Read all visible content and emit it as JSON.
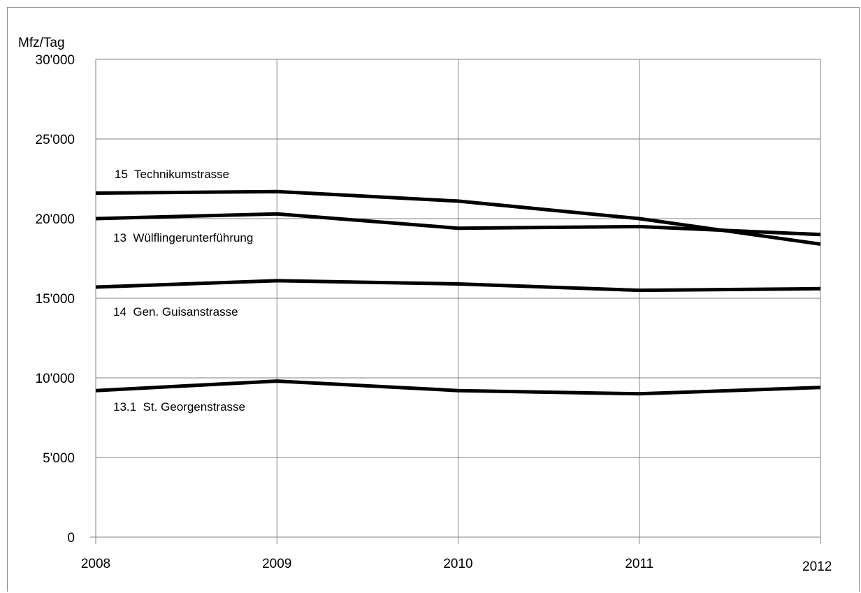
{
  "chart_data": {
    "type": "line",
    "ylabel": "Mfz/Tag",
    "xlabel": "",
    "title": "",
    "x": [
      "2008",
      "2009",
      "2010",
      "2011",
      "2012"
    ],
    "ylim": [
      0,
      30000
    ],
    "yticks": [
      0,
      5000,
      10000,
      15000,
      20000,
      25000,
      30000
    ],
    "ytick_labels": [
      "0",
      "5'000",
      "10'000",
      "15'000",
      "20'000",
      "25'000",
      "30'000"
    ],
    "grid": true,
    "legend": "none (series labelled directly on chart)",
    "line_color": "#000000",
    "series": [
      {
        "name": "15  Technikumstrasse",
        "values": [
          21600,
          21700,
          21100,
          20000,
          18400
        ]
      },
      {
        "name": "13  Wülflingerunterführung",
        "values": [
          20000,
          20300,
          19400,
          19500,
          19000
        ]
      },
      {
        "name": "14  Gen. Guisanstrasse",
        "values": [
          15700,
          16100,
          15900,
          15500,
          15600
        ]
      },
      {
        "name": "13.1  St. Georgenstrasse",
        "values": [
          9200,
          9800,
          9200,
          9000,
          9400
        ]
      }
    ]
  }
}
